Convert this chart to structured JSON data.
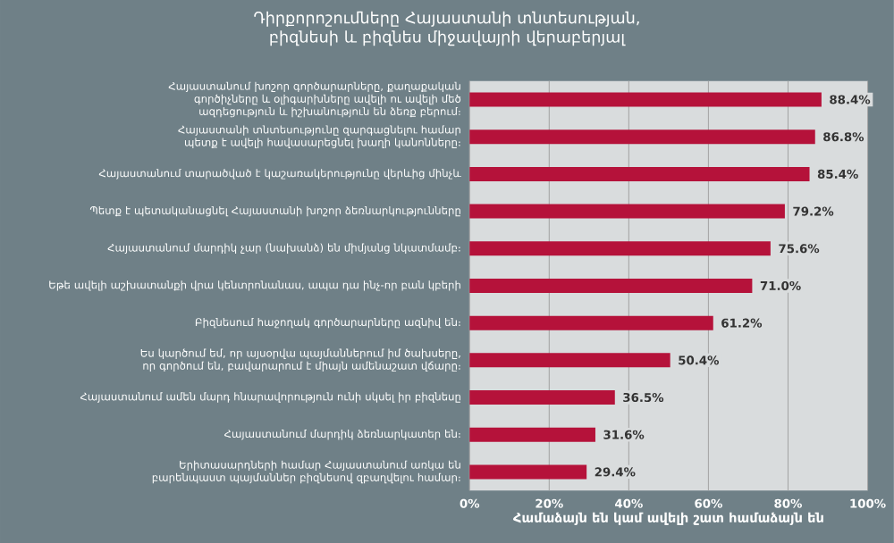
{
  "chart_data": {
    "type": "bar",
    "orientation": "horizontal",
    "title": "Դիրքորոշումները Հայաստանի տնտեսության, բիզնեսի և բիզնես միջավայրի վերաբերյալ",
    "xlabel": "Համաձայն են կամ ավելի շատ համաձայն են",
    "categories": [
      "Հայաստանում խոշոր գործարարները, քաղաքական գործիչները և օլիգարխները ավելի ու ավելի մեծ ազդեցություն և իշխանություն են ձեռք բերում։",
      "Հայաստանի տնտեսությունը զարգացնելու համար պետք է ավելի հավասարեցնել խաղի կանոնները։",
      "Հայաստանում տարածված է կաշառակերությունը վերևից մինչև",
      "Պետք է պետականացնել Հայաստանի խոշոր ձեռնարկությունները",
      "Հայաստանում մարդիկ չար (նախանձ) են միմյանց նկատմամբ։",
      "Եթե ավելի աշխատանքի վրա կենտրոնանաս, ապա դա ինչ-որ բան կբերի",
      "Բիզնեսում հաջողակ գործարարները ազնիվ են։",
      "Ես կարծում եմ, որ այսօրվա պայմաններում իմ ծախսերը, որ գործում են, բավարարում է միայն ամենաշատ վճարը։",
      "Հայաստանում ամեն մարդ հնարավորություն ունի սկսել իր բիզնեսը",
      "Հայաստանում մարդիկ ձեռնարկատեր են։",
      "Երիտասարդների համար Հայաստանում առկա են բարենպաստ պայմաններ բիզնեսով զբաղվելու համար։"
    ],
    "values": [
      88.4,
      86.8,
      85.4,
      79.2,
      75.6,
      71.0,
      61.2,
      50.4,
      36.5,
      31.6,
      29.4
    ],
    "value_labels": [
      "88.4%",
      "86.8%",
      "85.4%",
      "79.2%",
      "75.6%",
      "71.0%",
      "61.2%",
      "50.4%",
      "36.5%",
      "31.6%",
      "29.4%"
    ],
    "color": "#b5123a",
    "xlim": [
      0,
      100
    ],
    "xticks": [
      {
        "value": 0,
        "label": "0%"
      },
      {
        "value": 20,
        "label": "20%"
      },
      {
        "value": 40,
        "label": "40%"
      },
      {
        "value": 60,
        "label": "60%"
      },
      {
        "value": 80,
        "label": "80%"
      },
      {
        "value": 100,
        "label": "100%"
      }
    ],
    "grid": "x"
  }
}
